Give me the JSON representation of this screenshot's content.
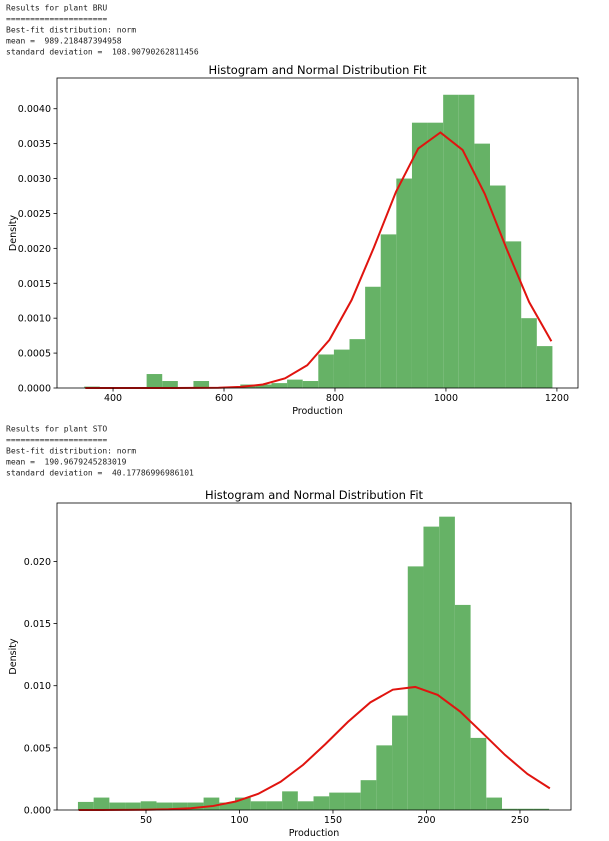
{
  "outputs": [
    {
      "lines": [
        "Results for plant BRU",
        "=====================",
        "Best-fit distribution: norm",
        "mean =  989.218487394958",
        "standard deviation =  108.90790262811456"
      ]
    },
    {
      "lines": [
        "Results for plant STO",
        "=====================",
        "Best-fit distribution: norm",
        "mean =  190.9679245283019",
        "standard deviation =  40.17786996986101"
      ]
    }
  ],
  "chart_data": [
    {
      "type": "histogram",
      "title": "Histogram and Normal Distribution Fit",
      "xlabel": "Production",
      "ylabel": "Density",
      "bins": [
        348.0,
        376.13,
        404.26,
        432.39,
        460.52,
        488.65,
        516.78,
        544.91,
        573.04,
        601.17,
        629.3,
        657.43,
        685.56,
        713.69,
        741.82,
        769.95,
        798.08,
        826.21,
        854.34,
        882.47,
        910.6,
        938.73,
        966.86,
        994.99,
        1023.12,
        1051.25,
        1079.38,
        1107.51,
        1135.64,
        1163.77,
        1191.9
      ],
      "values": [
        2e-05,
        0,
        0,
        0,
        0.0002,
        0.0001,
        0,
        0.0001,
        0,
        0,
        5e-05,
        5e-05,
        7e-05,
        0.00012,
        0.0001,
        0.00048,
        0.00055,
        0.0007,
        0.00145,
        0.0022,
        0.003,
        0.0038,
        0.0038,
        0.0042,
        0.0042,
        0.0035,
        0.0029,
        0.0021,
        0.001,
        0.0006
      ],
      "color": "#66b266",
      "fit": {
        "color": "#e0140f",
        "x": [
          350,
          390,
          430,
          470,
          510,
          550,
          590,
          630,
          670,
          710,
          750,
          790,
          830,
          870,
          910,
          950,
          990,
          1030,
          1070,
          1110,
          1150,
          1190
        ],
        "values": [
          0,
          0,
          0,
          0,
          0,
          1e-06,
          4e-06,
          1.6e-05,
          5e-05,
          0.000138,
          0.000326,
          0.000689,
          0.00126,
          0.00201,
          0.00281,
          0.00343,
          0.00366,
          0.00341,
          0.00278,
          0.00198,
          0.00123,
          0.00067
        ]
      },
      "xlim": [
        299,
        1238
      ],
      "ylim": [
        0,
        0.00444
      ],
      "xticks": [
        400,
        600,
        800,
        1000,
        1200
      ],
      "yticks": [
        {
          "value": 0,
          "label": "0.0000"
        },
        {
          "value": 0.0005,
          "label": "0.0005"
        },
        {
          "value": 0.001,
          "label": "0.0010"
        },
        {
          "value": 0.0015,
          "label": "0.0015"
        },
        {
          "value": 0.002,
          "label": "0.0020"
        },
        {
          "value": 0.0025,
          "label": "0.0025"
        },
        {
          "value": 0.003,
          "label": "0.0030"
        },
        {
          "value": 0.0035,
          "label": "0.0035"
        },
        {
          "value": 0.004,
          "label": "0.0040"
        }
      ]
    },
    {
      "type": "histogram",
      "title": "Histogram and Normal Distribution Fit",
      "xlabel": "Production",
      "ylabel": "Density",
      "bins": [
        13.6,
        22,
        30.4,
        38.8,
        47.2,
        55.6,
        64,
        72.4,
        80.8,
        89.2,
        97.6,
        106,
        114.4,
        122.8,
        131.2,
        139.6,
        148,
        156.4,
        164.8,
        173.2,
        181.6,
        190,
        198.4,
        206.8,
        215.2,
        223.6,
        232,
        240.4,
        248.8,
        257.2,
        265.6
      ],
      "values": [
        0.00065,
        0.001,
        0.0006,
        0.0006,
        0.0007,
        0.0006,
        0.0006,
        0.0006,
        0.001,
        0.0006,
        0.001,
        0.0007,
        0.0007,
        0.0015,
        0.0007,
        0.0011,
        0.0014,
        0.0014,
        0.0024,
        0.0052,
        0.0076,
        0.0196,
        0.0228,
        0.0236,
        0.0165,
        0.0058,
        0.001,
        0.0001,
        0.0001,
        0.0001
      ],
      "color": "#66b266",
      "fit": {
        "color": "#e0140f",
        "x": [
          14,
          26,
          38,
          50,
          62,
          74,
          86,
          98,
          110,
          122,
          134,
          146,
          158,
          170,
          182,
          194,
          206,
          218,
          230,
          242,
          254,
          266
        ],
        "values": [
          1e-06,
          2e-06,
          7e-06,
          2.1e-05,
          5.8e-05,
          0.000143,
          0.000327,
          0.000682,
          0.0013,
          0.00227,
          0.00363,
          0.00531,
          0.00709,
          0.00866,
          0.00968,
          0.0099,
          0.00926,
          0.00792,
          0.00619,
          0.00443,
          0.0029,
          0.00174
        ]
      },
      "xlim": [
        2.4,
        277.3
      ],
      "ylim": [
        0,
        0.0247
      ],
      "xticks": [
        50,
        100,
        150,
        200,
        250
      ],
      "yticks": [
        {
          "value": 0,
          "label": "0.000"
        },
        {
          "value": 0.005,
          "label": "0.005"
        },
        {
          "value": 0.01,
          "label": "0.010"
        },
        {
          "value": 0.015,
          "label": "0.015"
        },
        {
          "value": 0.02,
          "label": "0.020"
        }
      ]
    }
  ]
}
